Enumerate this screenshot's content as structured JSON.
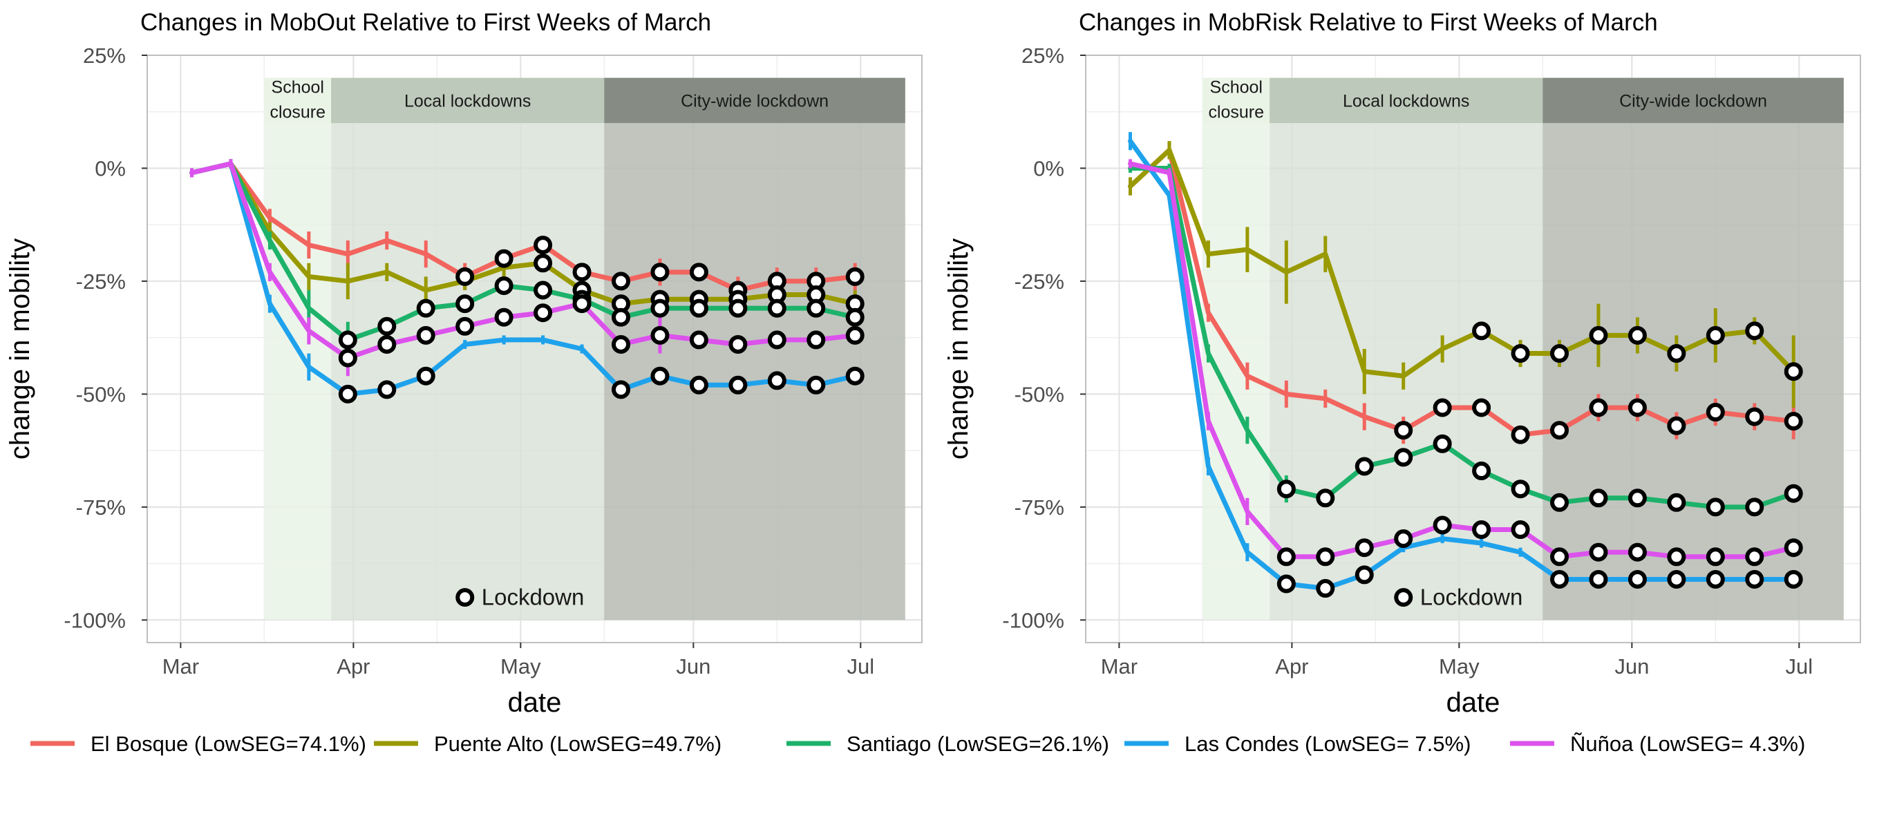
{
  "colors": {
    "El Bosque": "#F2645E",
    "Puente Alto": "#999900",
    "Santiago": "#1DB26A",
    "Las Condes": "#1FA2EC",
    "Nunoa": "#DC52EC",
    "phase_school": "#E9F3E6",
    "phase_local": "#D8E1D6",
    "phase_city": "#B6BBB3",
    "phase_local_header": "#BDC9BA",
    "phase_city_header": "#868C84"
  },
  "legend": {
    "items": [
      {
        "key": "El Bosque",
        "label": "El Bosque (LowSEG=74.1%)"
      },
      {
        "key": "Puente Alto",
        "label": "Puente Alto (LowSEG=49.7%)"
      },
      {
        "key": "Santiago",
        "label": "Santiago (LowSEG=26.1%)"
      },
      {
        "key": "Las Condes",
        "label": "Las Condes (LowSEG= 7.5%)"
      },
      {
        "key": "Nunoa",
        "label": "Ñuñoa (LowSEG= 4.3%)"
      }
    ]
  },
  "chart_data": [
    {
      "type": "line",
      "title": "Changes in MobOut Relative to First Weeks of March",
      "xlabel": "date",
      "ylabel": "change in mobility",
      "x_ticks": [
        "Mar",
        "Apr",
        "May",
        "Jun",
        "Jul"
      ],
      "y_ticks": [
        "25%",
        "0%",
        "-25%",
        "-50%",
        "-75%",
        "-100%"
      ],
      "ylim": [
        -105,
        25
      ],
      "grid": true,
      "phases": [
        {
          "name": "School closure",
          "label_lines": [
            "School",
            "closure"
          ],
          "start": "2020-03-16",
          "end": "2020-03-28"
        },
        {
          "name": "Local lockdowns",
          "label_lines": [
            "Local lockdowns"
          ],
          "start": "2020-03-28",
          "end": "2020-05-16"
        },
        {
          "name": "City-wide lockdown",
          "label_lines": [
            "City-wide lockdown"
          ],
          "start": "2020-05-16",
          "end": "2020-07-09"
        }
      ],
      "annotation": "Lockdown",
      "x": [
        "2020-03-03",
        "2020-03-10",
        "2020-03-17",
        "2020-03-24",
        "2020-03-31",
        "2020-04-07",
        "2020-04-14",
        "2020-04-21",
        "2020-04-28",
        "2020-05-05",
        "2020-05-12",
        "2020-05-19",
        "2020-05-26",
        "2020-06-02",
        "2020-06-09",
        "2020-06-16",
        "2020-06-23",
        "2020-06-30"
      ],
      "series": [
        {
          "name": "El Bosque",
          "key": "El Bosque",
          "values": [
            -1,
            1,
            -11,
            -17,
            -19,
            -16,
            -19,
            -24,
            -20,
            -17,
            -23,
            -25,
            -23,
            -23,
            -27,
            -25,
            -25,
            -24
          ],
          "lockdown": [
            false,
            false,
            false,
            false,
            false,
            false,
            false,
            true,
            true,
            true,
            true,
            true,
            true,
            true,
            true,
            true,
            true,
            true
          ],
          "err": [
            1,
            1,
            2,
            3,
            3,
            2,
            3,
            3,
            2,
            2,
            2,
            2,
            3,
            2,
            3,
            3,
            3,
            3
          ]
        },
        {
          "name": "Puente Alto",
          "key": "Puente Alto",
          "values": [
            -1,
            1,
            -14,
            -24,
            -25,
            -23,
            -27,
            -25,
            -22,
            -21,
            -27,
            -30,
            -29,
            -29,
            -29,
            -28,
            -28,
            -30
          ],
          "lockdown": [
            false,
            false,
            false,
            false,
            false,
            false,
            false,
            false,
            false,
            true,
            true,
            true,
            true,
            true,
            true,
            true,
            true,
            true
          ],
          "err": [
            1,
            1,
            2,
            3,
            4,
            2,
            3,
            2,
            2,
            2,
            2,
            2,
            2,
            2,
            2,
            2,
            2,
            3
          ]
        },
        {
          "name": "Santiago",
          "key": "Santiago",
          "values": [
            -1,
            1,
            -16,
            -31,
            -38,
            -35,
            -31,
            -30,
            -26,
            -27,
            -29,
            -33,
            -31,
            -31,
            -31,
            -31,
            -31,
            -33
          ],
          "lockdown": [
            false,
            false,
            false,
            false,
            true,
            true,
            true,
            true,
            true,
            true,
            true,
            true,
            true,
            true,
            true,
            true,
            true,
            true
          ],
          "err": [
            1,
            1,
            2,
            4,
            4,
            2,
            2,
            2,
            2,
            2,
            2,
            2,
            2,
            2,
            2,
            2,
            2,
            2
          ]
        },
        {
          "name": "Las Condes",
          "key": "Las Condes",
          "values": [
            -1,
            1,
            -30,
            -44,
            -50,
            -49,
            -46,
            -39,
            -38,
            -38,
            -40,
            -49,
            -46,
            -48,
            -48,
            -47,
            -48,
            -46
          ],
          "lockdown": [
            false,
            false,
            false,
            false,
            true,
            true,
            true,
            false,
            false,
            false,
            false,
            true,
            true,
            true,
            true,
            true,
            true,
            true
          ],
          "err": [
            1,
            1,
            2,
            3,
            2,
            2,
            2,
            1,
            1,
            1,
            1,
            2,
            2,
            2,
            2,
            2,
            2,
            2
          ]
        },
        {
          "name": "Ñuñoa",
          "key": "Nunoa",
          "values": [
            -1,
            1,
            -23,
            -36,
            -42,
            -39,
            -37,
            -35,
            -33,
            -32,
            -30,
            -39,
            -37,
            -38,
            -39,
            -38,
            -38,
            -37
          ],
          "lockdown": [
            false,
            false,
            false,
            false,
            true,
            true,
            true,
            true,
            true,
            true,
            true,
            true,
            true,
            true,
            true,
            true,
            true,
            true
          ],
          "err": [
            1,
            1,
            2,
            3,
            4,
            2,
            2,
            2,
            2,
            2,
            2,
            2,
            4,
            2,
            2,
            2,
            2,
            2
          ]
        }
      ]
    },
    {
      "type": "line",
      "title": "Changes in MobRisk Relative to First Weeks of March",
      "xlabel": "date",
      "ylabel": "change in mobility",
      "x_ticks": [
        "Mar",
        "Apr",
        "May",
        "Jun",
        "Jul"
      ],
      "y_ticks": [
        "25%",
        "0%",
        "-25%",
        "-50%",
        "-75%",
        "-100%"
      ],
      "ylim": [
        -105,
        25
      ],
      "grid": true,
      "phases": [
        {
          "name": "School closure",
          "label_lines": [
            "School",
            "closure"
          ],
          "start": "2020-03-16",
          "end": "2020-03-28"
        },
        {
          "name": "Local lockdowns",
          "label_lines": [
            "Local lockdowns"
          ],
          "start": "2020-03-28",
          "end": "2020-05-16"
        },
        {
          "name": "City-wide lockdown",
          "label_lines": [
            "City-wide lockdown"
          ],
          "start": "2020-05-16",
          "end": "2020-07-09"
        }
      ],
      "annotation": "Lockdown",
      "x": [
        "2020-03-03",
        "2020-03-10",
        "2020-03-17",
        "2020-03-24",
        "2020-03-31",
        "2020-04-07",
        "2020-04-14",
        "2020-04-21",
        "2020-04-28",
        "2020-05-05",
        "2020-05-12",
        "2020-05-19",
        "2020-05-26",
        "2020-06-02",
        "2020-06-09",
        "2020-06-16",
        "2020-06-23",
        "2020-06-30"
      ],
      "series": [
        {
          "name": "El Bosque",
          "key": "El Bosque",
          "values": [
            -4,
            4,
            -32,
            -46,
            -50,
            -51,
            -55,
            -58,
            -53,
            -53,
            -59,
            -58,
            -53,
            -53,
            -57,
            -54,
            -55,
            -56
          ],
          "lockdown": [
            false,
            false,
            false,
            false,
            false,
            false,
            false,
            true,
            true,
            true,
            true,
            true,
            true,
            true,
            true,
            true,
            true,
            true
          ],
          "err": [
            2,
            2,
            2,
            3,
            3,
            2,
            3,
            3,
            2,
            2,
            2,
            2,
            3,
            3,
            3,
            3,
            3,
            4
          ]
        },
        {
          "name": "Puente Alto",
          "key": "Puente Alto",
          "values": [
            -4,
            4,
            -19,
            -18,
            -23,
            -19,
            -45,
            -46,
            -40,
            -36,
            -41,
            -41,
            -37,
            -37,
            -41,
            -37,
            -36,
            -45
          ],
          "lockdown": [
            false,
            false,
            false,
            false,
            false,
            false,
            false,
            false,
            false,
            true,
            true,
            true,
            true,
            true,
            true,
            true,
            true,
            true
          ],
          "err": [
            2,
            2,
            3,
            5,
            7,
            4,
            5,
            3,
            3,
            2,
            3,
            3,
            7,
            4,
            4,
            6,
            3,
            8
          ]
        },
        {
          "name": "Santiago",
          "key": "Santiago",
          "values": [
            0,
            0,
            -41,
            -58,
            -71,
            -73,
            -66,
            -64,
            -61,
            -67,
            -71,
            -74,
            -73,
            -73,
            -74,
            -75,
            -75,
            -72
          ],
          "lockdown": [
            false,
            false,
            false,
            false,
            true,
            true,
            true,
            true,
            true,
            true,
            true,
            true,
            true,
            true,
            true,
            true,
            true,
            true
          ],
          "err": [
            1,
            1,
            2,
            3,
            3,
            2,
            2,
            2,
            2,
            2,
            2,
            2,
            2,
            2,
            2,
            2,
            2,
            2
          ]
        },
        {
          "name": "Las Condes",
          "key": "Las Condes",
          "values": [
            6,
            -6,
            -66,
            -85,
            -92,
            -93,
            -90,
            -84,
            -82,
            -83,
            -85,
            -91,
            -91,
            -91,
            -91,
            -91,
            -91,
            -91
          ],
          "lockdown": [
            false,
            false,
            false,
            false,
            true,
            true,
            true,
            false,
            false,
            false,
            false,
            true,
            true,
            true,
            true,
            true,
            true,
            true
          ],
          "err": [
            2,
            1,
            2,
            2,
            2,
            2,
            2,
            1,
            1,
            1,
            1,
            2,
            2,
            2,
            2,
            2,
            2,
            2
          ]
        },
        {
          "name": "Ñuñoa",
          "key": "Nunoa",
          "values": [
            1,
            -1,
            -56,
            -76,
            -86,
            -86,
            -84,
            -82,
            -79,
            -80,
            -80,
            -86,
            -85,
            -85,
            -86,
            -86,
            -86,
            -84
          ],
          "lockdown": [
            false,
            false,
            false,
            false,
            true,
            true,
            true,
            true,
            true,
            true,
            true,
            true,
            true,
            true,
            true,
            true,
            true,
            true
          ],
          "err": [
            1,
            1,
            2,
            3,
            2,
            2,
            2,
            2,
            2,
            2,
            2,
            2,
            2,
            2,
            2,
            2,
            2,
            2
          ]
        }
      ]
    }
  ]
}
